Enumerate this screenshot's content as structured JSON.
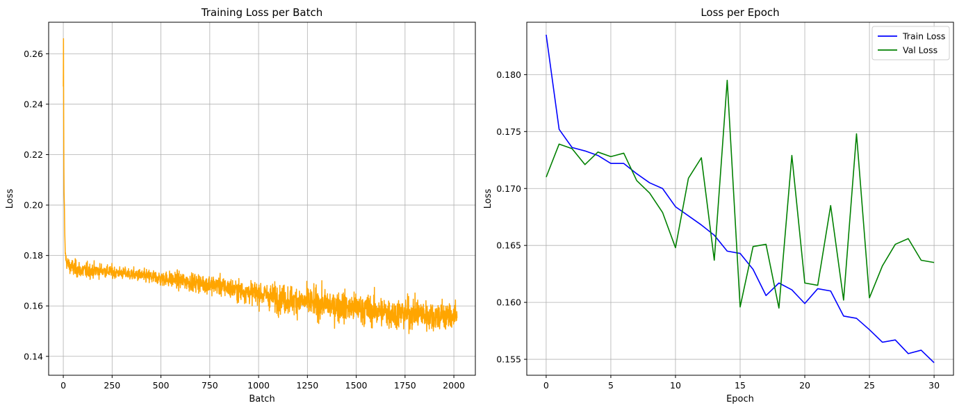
{
  "chart_data": [
    {
      "type": "line",
      "title": "Training Loss per Batch",
      "xlabel": "Batch",
      "ylabel": "Loss",
      "xlim": [
        -75,
        2110
      ],
      "ylim": [
        0.1325,
        0.2725
      ],
      "xticks": [
        0,
        250,
        500,
        750,
        1000,
        1250,
        1500,
        1750,
        2000
      ],
      "yticks": [
        0.14,
        0.16,
        0.18,
        0.2,
        0.22,
        0.24,
        0.26
      ],
      "ytick_labels": [
        "0.14",
        "0.16",
        "0.18",
        "0.20",
        "0.22",
        "0.24",
        "0.26"
      ],
      "grid": true,
      "color": "#ffa500",
      "series": [
        {
          "approximate_profile": {
            "x": [
              0,
              1,
              2,
              3,
              4,
              6,
              8,
              10,
              15,
              20,
              30,
              50,
              100,
              200,
              300,
              400,
              500,
              600,
              700,
              800,
              900,
              1000,
              1100,
              1200,
              1300,
              1400,
              1500,
              1600,
              1700,
              1800,
              1900,
              2000,
              2015
            ],
            "y": [
              0.247,
              0.266,
              0.236,
              0.215,
              0.205,
              0.198,
              0.186,
              0.181,
              0.178,
              0.177,
              0.176,
              0.175,
              0.174,
              0.174,
              0.173,
              0.172,
              0.171,
              0.17,
              0.169,
              0.168,
              0.166,
              0.165,
              0.163,
              0.162,
              0.161,
              0.16,
              0.159,
              0.158,
              0.157,
              0.157,
              0.156,
              0.156,
              0.155
            ]
          },
          "noise_band": {
            "x": [
              0,
              50,
              300,
              600,
              800,
              1000,
              1100,
              1500,
              2015
            ],
            "half_width": [
              0.004,
              0.006,
              0.004,
              0.006,
              0.007,
              0.008,
              0.01,
              0.011,
              0.011
            ]
          },
          "n_points": 2017
        }
      ]
    },
    {
      "type": "line",
      "title": "Loss per Epoch",
      "xlabel": "Epoch",
      "ylabel": "Loss",
      "xlim": [
        -1.5,
        31.5
      ],
      "ylim": [
        0.1536,
        0.1846
      ],
      "xticks": [
        0,
        5,
        10,
        15,
        20,
        25,
        30
      ],
      "yticks": [
        0.155,
        0.16,
        0.165,
        0.17,
        0.175,
        0.18
      ],
      "ytick_labels": [
        "0.155",
        "0.160",
        "0.165",
        "0.170",
        "0.175",
        "0.180"
      ],
      "grid": true,
      "legend_position": "top-right",
      "x": [
        0,
        1,
        2,
        3,
        4,
        5,
        6,
        7,
        8,
        9,
        10,
        11,
        12,
        13,
        14,
        15,
        16,
        17,
        18,
        19,
        20,
        21,
        22,
        23,
        24,
        25,
        26,
        27,
        28,
        29,
        30
      ],
      "series": [
        {
          "name": "Train Loss",
          "color": "#0000ff",
          "values": [
            0.1835,
            0.1752,
            0.1736,
            0.1733,
            0.1729,
            0.1722,
            0.1722,
            0.1713,
            0.1705,
            0.17,
            0.1684,
            0.1676,
            0.1668,
            0.1659,
            0.1645,
            0.1643,
            0.1629,
            0.1606,
            0.1617,
            0.1611,
            0.1599,
            0.1612,
            0.161,
            0.1588,
            0.1586,
            0.1576,
            0.1565,
            0.1567,
            0.1555,
            0.1558,
            0.1547
          ]
        },
        {
          "name": "Val Loss",
          "color": "#008000",
          "values": [
            0.171,
            0.1739,
            0.1735,
            0.1721,
            0.1732,
            0.1728,
            0.1731,
            0.1707,
            0.1696,
            0.1679,
            0.1648,
            0.1709,
            0.1727,
            0.1637,
            0.1795,
            0.1596,
            0.1649,
            0.1651,
            0.1595,
            0.1729,
            0.1617,
            0.1615,
            0.1685,
            0.1602,
            0.1748,
            0.1604,
            0.1632,
            0.1651,
            0.1656,
            0.1637,
            0.1635
          ]
        }
      ]
    }
  ]
}
